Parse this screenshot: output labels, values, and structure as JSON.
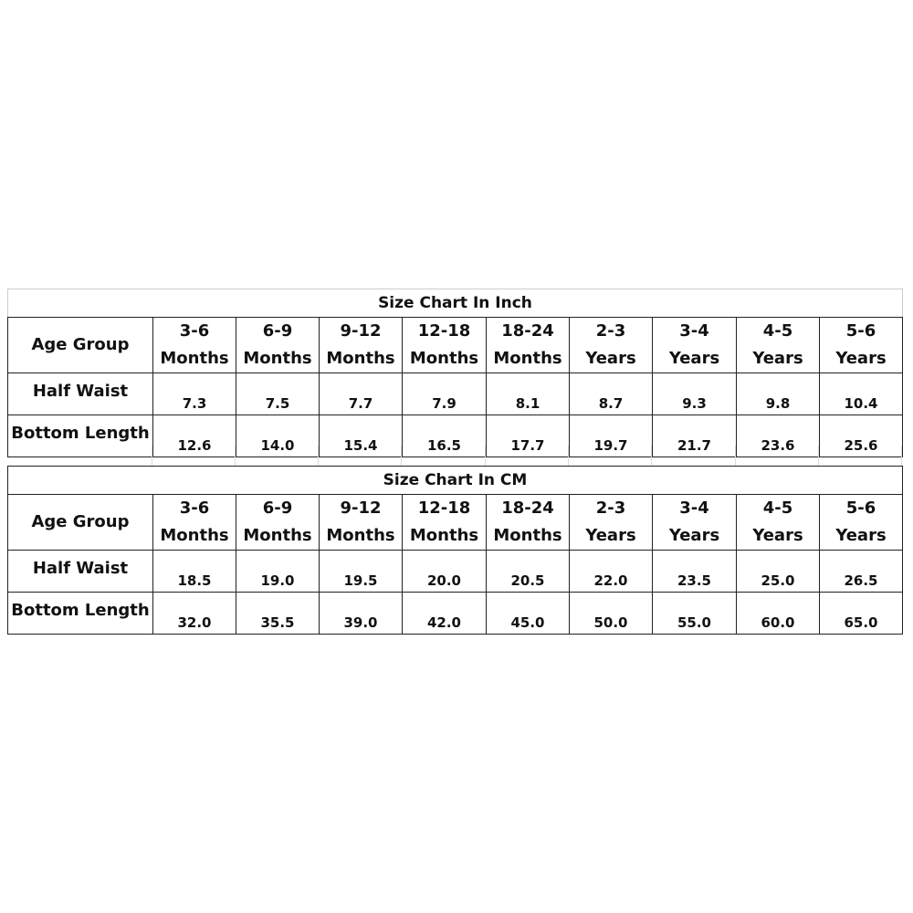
{
  "tables": [
    {
      "title": "Size Chart In Inch",
      "header_label": "Age Group",
      "columns": [
        [
          "3-6",
          "Months"
        ],
        [
          "6-9",
          "Months"
        ],
        [
          "9-12",
          "Months"
        ],
        [
          "12-18",
          "Months"
        ],
        [
          "18-24",
          "Months"
        ],
        [
          "2-3",
          "Years"
        ],
        [
          "3-4",
          "Years"
        ],
        [
          "4-5",
          "Years"
        ],
        [
          "5-6",
          "Years"
        ]
      ],
      "rows": [
        {
          "label": "Half Waist",
          "values": [
            "7.3",
            "7.5",
            "7.7",
            "7.9",
            "8.1",
            "8.7",
            "9.3",
            "9.8",
            "10.4"
          ]
        },
        {
          "label": "Bottom Length",
          "values": [
            "12.6",
            "14.0",
            "15.4",
            "16.5",
            "17.7",
            "19.7",
            "21.7",
            "23.6",
            "25.6"
          ]
        }
      ]
    },
    {
      "title": "Size Chart In CM",
      "header_label": "Age Group",
      "columns": [
        [
          "3-6",
          "Months"
        ],
        [
          "6-9",
          "Months"
        ],
        [
          "9-12",
          "Months"
        ],
        [
          "12-18",
          "Months"
        ],
        [
          "18-24",
          "Months"
        ],
        [
          "2-3",
          "Years"
        ],
        [
          "3-4",
          "Years"
        ],
        [
          "4-5",
          "Years"
        ],
        [
          "5-6",
          "Years"
        ]
      ],
      "rows": [
        {
          "label": "Half Waist",
          "values": [
            "18.5",
            "19.0",
            "19.5",
            "20.0",
            "20.5",
            "22.0",
            "23.5",
            "25.0",
            "26.5"
          ]
        },
        {
          "label": "Bottom Length",
          "values": [
            "32.0",
            "35.5",
            "39.0",
            "42.0",
            "45.0",
            "50.0",
            "55.0",
            "60.0",
            "65.0"
          ]
        }
      ]
    }
  ]
}
